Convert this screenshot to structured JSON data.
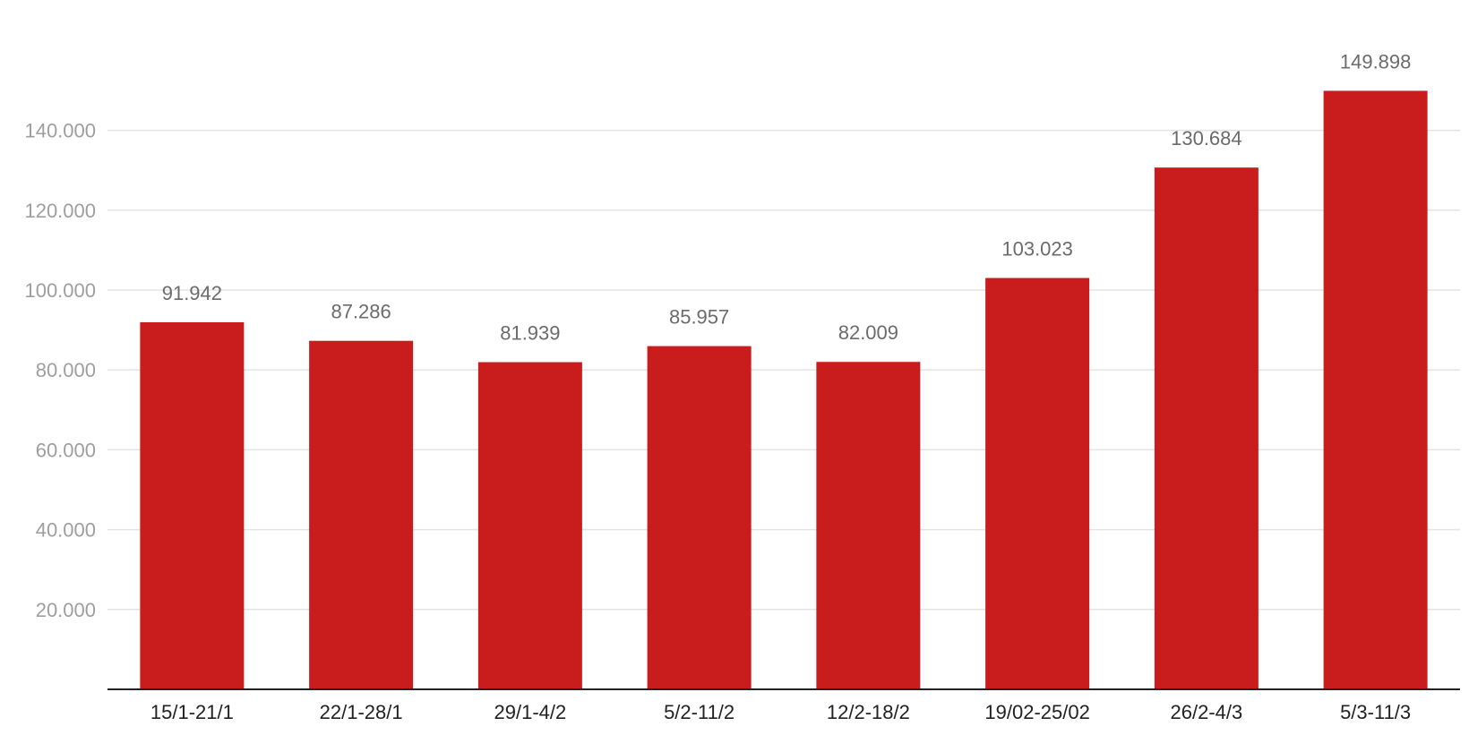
{
  "chart_data": {
    "type": "bar",
    "categories": [
      "15/1-21/1",
      "22/1-28/1",
      "29/1-4/2",
      "5/2-11/2",
      "12/2-18/2",
      "19/02-25/02",
      "26/2-4/3",
      "5/3-11/3"
    ],
    "values": [
      91942,
      87286,
      81939,
      85957,
      82009,
      103023,
      130684,
      149898
    ],
    "data_labels": [
      "91.942",
      "87.286",
      "81.939",
      "85.957",
      "82.009",
      "103.023",
      "130.684",
      "149.898"
    ],
    "y_ticks": [
      20000,
      40000,
      60000,
      80000,
      100000,
      120000,
      140000
    ],
    "y_tick_labels": [
      "20.000",
      "40.000",
      "60.000",
      "80.000",
      "100.000",
      "120.000",
      "140.000"
    ],
    "ylim": [
      0,
      140000
    ],
    "grid": true,
    "legend": "none",
    "title": "",
    "xlabel": "",
    "ylabel": "",
    "colors": {
      "bar": "#c91c1c",
      "grid": "#e3e3e3",
      "axis": "#222222"
    }
  }
}
